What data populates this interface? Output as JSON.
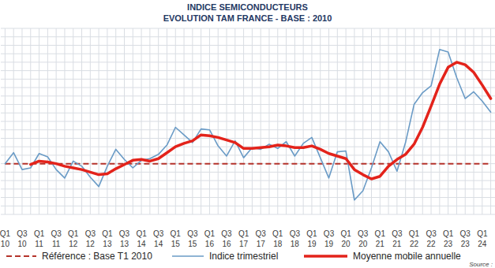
{
  "chart_data": {
    "type": "line",
    "title": "INDICE SEMICONDUCTEURS",
    "subtitle": "EVOLUTION TAM FRANCE - BASE : 2010",
    "source": "Source :",
    "categories": [
      "Q1 10",
      null,
      "Q3 10",
      null,
      "Q1 11",
      null,
      "Q3 11",
      null,
      "Q1 12",
      null,
      "Q3 12",
      null,
      "Q1 13",
      null,
      "Q3 13",
      null,
      "Q1 14",
      null,
      "Q3 14",
      null,
      "Q1 15",
      null,
      "Q3 15",
      null,
      "Q1 16",
      null,
      "Q3 16",
      null,
      "Q1 17",
      null,
      "Q3 17",
      null,
      "Q1 18",
      null,
      "Q3 18",
      null,
      "Q1 19",
      null,
      "Q3 19",
      null,
      "Q1 20",
      null,
      "Q3 20",
      null,
      "Q1 21",
      null,
      "Q3 21",
      null,
      "Q1 22",
      null,
      "Q3 22",
      null,
      "Q1 23",
      null,
      "Q3 23",
      null,
      "Q1 24",
      null
    ],
    "series": [
      {
        "name": "Référence : Base T1 2010",
        "color": "#b5332b",
        "line_style": "dashed",
        "values": [
          100,
          100,
          100,
          100,
          100,
          100,
          100,
          100,
          100,
          100,
          100,
          100,
          100,
          100,
          100,
          100,
          100,
          100,
          100,
          100,
          100,
          100,
          100,
          100,
          100,
          100,
          100,
          100,
          100,
          100,
          100,
          100,
          100,
          100,
          100,
          100,
          100,
          100,
          100,
          100,
          100,
          100,
          100,
          100,
          100,
          100,
          100,
          100,
          100,
          100,
          100,
          100,
          100,
          100,
          100,
          100,
          100,
          100
        ]
      },
      {
        "name": "Indice trimestriel",
        "color": "#6a9bc6",
        "line_style": "solid",
        "values": [
          100,
          113,
          93,
          95,
          112,
          108,
          93,
          83,
          103,
          97,
          84,
          73,
          97,
          117,
          105,
          95,
          104,
          106,
          111,
          122,
          143,
          134,
          125,
          141,
          140,
          121,
          109,
          127,
          107,
          119,
          117,
          123,
          118,
          126,
          109,
          124,
          131,
          107,
          83,
          114,
          115,
          57,
          68,
          95,
          126,
          114,
          91,
          125,
          170,
          184,
          192,
          235,
          232,
          202,
          177,
          185,
          174,
          161
        ]
      },
      {
        "name": "Moyenne mobile annuelle",
        "color": "#e3231b",
        "line_style": "solid",
        "values": [
          null,
          null,
          null,
          99,
          103,
          102,
          100,
          97,
          95,
          93,
          90,
          87,
          88,
          94,
          99,
          104,
          105,
          103,
          106,
          113,
          120,
          124,
          127,
          134,
          133,
          131,
          128,
          125,
          118,
          118,
          119,
          120,
          122,
          121,
          119,
          119,
          121,
          117,
          112,
          109,
          106,
          93,
          87,
          82,
          85,
          97,
          105,
          111,
          123,
          143,
          168,
          194,
          214,
          220,
          217,
          208,
          193,
          177
        ]
      }
    ],
    "ylim": [
      40,
      260
    ],
    "yticks": [
      40,
      50,
      60,
      70,
      80,
      90,
      100,
      110,
      120,
      130,
      140,
      150,
      160,
      170,
      180,
      190,
      200,
      210,
      220,
      230,
      240,
      250,
      260
    ],
    "grid": true,
    "tick_labels": "x",
    "legend": "bottom"
  }
}
